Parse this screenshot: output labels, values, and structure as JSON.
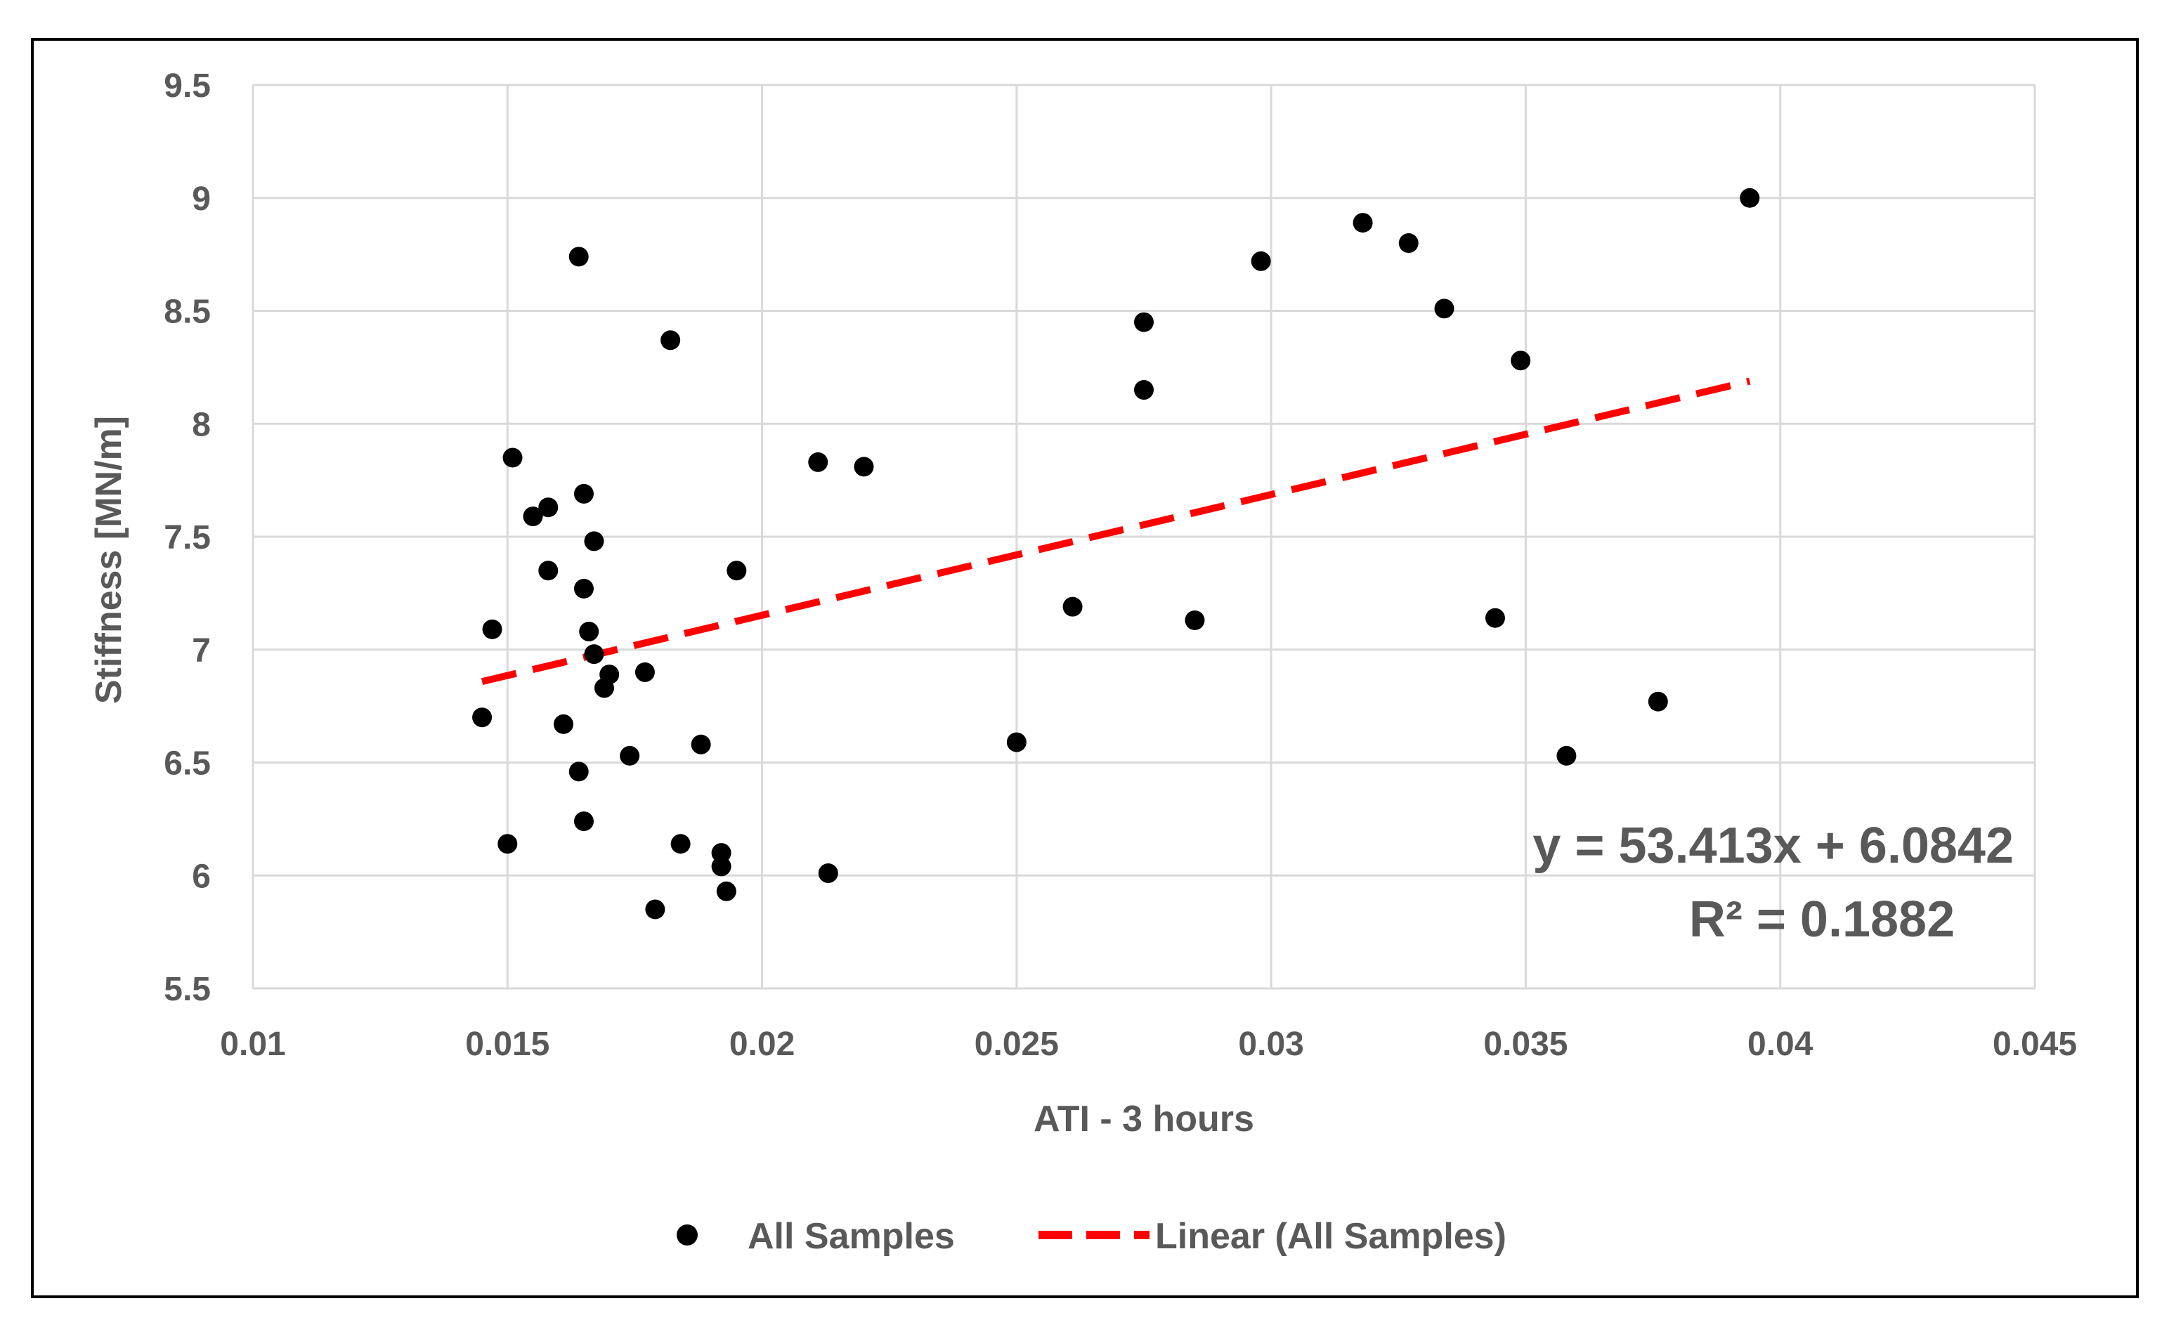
{
  "chart_data": {
    "type": "scatter",
    "xlabel": "ATI - 3 hours",
    "ylabel": "Stiffness [MN/m]",
    "xlim": [
      0.01,
      0.045
    ],
    "ylim": [
      5.5,
      9.5
    ],
    "x_ticks": [
      "0.01",
      "0.015",
      "0.02",
      "0.025",
      "0.03",
      "0.035",
      "0.04",
      "0.045"
    ],
    "y_ticks": [
      "5.5",
      "6",
      "6.5",
      "7",
      "7.5",
      "8",
      "8.5",
      "9",
      "9.5"
    ],
    "x_tick_values": [
      0.01,
      0.015,
      0.02,
      0.025,
      0.03,
      0.035,
      0.04,
      0.045
    ],
    "y_tick_values": [
      5.5,
      6,
      6.5,
      7,
      7.5,
      8,
      8.5,
      9,
      9.5
    ],
    "grid": true,
    "legend_position": "bottom",
    "series": [
      {
        "name": "All Samples",
        "color": "#000000",
        "marker": "circle",
        "points": [
          [
            0.0145,
            6.7
          ],
          [
            0.0147,
            7.09
          ],
          [
            0.015,
            6.14
          ],
          [
            0.0151,
            7.85
          ],
          [
            0.0155,
            7.59
          ],
          [
            0.0158,
            7.63
          ],
          [
            0.0158,
            7.35
          ],
          [
            0.0161,
            6.67
          ],
          [
            0.0164,
            8.74
          ],
          [
            0.0164,
            6.46
          ],
          [
            0.0165,
            7.69
          ],
          [
            0.0165,
            7.27
          ],
          [
            0.0165,
            6.24
          ],
          [
            0.0166,
            7.08
          ],
          [
            0.0167,
            7.48
          ],
          [
            0.0167,
            6.98
          ],
          [
            0.0169,
            6.83
          ],
          [
            0.017,
            6.89
          ],
          [
            0.0174,
            6.53
          ],
          [
            0.0177,
            6.9
          ],
          [
            0.0179,
            5.85
          ],
          [
            0.0182,
            8.37
          ],
          [
            0.0184,
            6.14
          ],
          [
            0.0188,
            6.58
          ],
          [
            0.0192,
            6.04
          ],
          [
            0.0192,
            6.1
          ],
          [
            0.0193,
            5.93
          ],
          [
            0.0195,
            7.35
          ],
          [
            0.0211,
            7.83
          ],
          [
            0.0213,
            6.01
          ],
          [
            0.022,
            7.81
          ],
          [
            0.025,
            6.59
          ],
          [
            0.0261,
            7.19
          ],
          [
            0.0275,
            8.45
          ],
          [
            0.0275,
            8.15
          ],
          [
            0.0285,
            7.13
          ],
          [
            0.0298,
            8.72
          ],
          [
            0.0318,
            8.89
          ],
          [
            0.0327,
            8.8
          ],
          [
            0.0334,
            8.51
          ],
          [
            0.0344,
            7.14
          ],
          [
            0.0349,
            8.28
          ],
          [
            0.0358,
            6.53
          ],
          [
            0.0376,
            6.77
          ],
          [
            0.0394,
            9.0
          ]
        ]
      }
    ],
    "trendline": {
      "name": "Linear (All Samples)",
      "color": "#ff0000",
      "slope": 53.413,
      "intercept": 6.0842,
      "x_range": [
        0.0145,
        0.0394
      ],
      "equation": "y = 53.413x + 6.0842",
      "r_squared": "R² = 0.1882"
    }
  }
}
